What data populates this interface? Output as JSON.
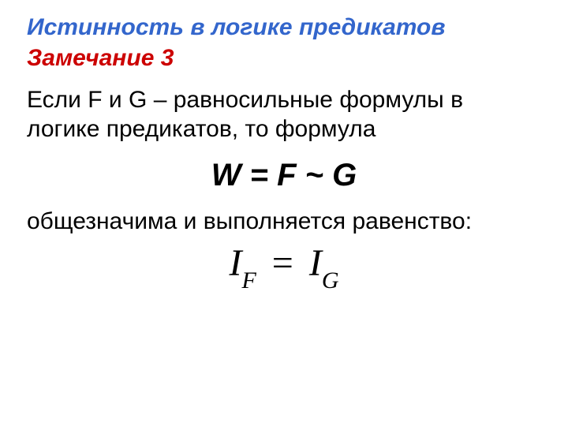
{
  "colors": {
    "title": "#3366cc",
    "subtitle": "#cc0000",
    "body": "#000000",
    "background": "#ffffff"
  },
  "title": "Истинность в логике предикатов",
  "subtitle": "Замечание 3",
  "paragraph1": "Если F и G – равносильные формулы в логике предикатов, то формула",
  "formula": "W = F ~ G",
  "paragraph2": "общезначима и выполняется равенство:",
  "equation": {
    "left_base": "I",
    "left_sub": "F",
    "operator": "=",
    "right_base": "I",
    "right_sub": "G"
  }
}
